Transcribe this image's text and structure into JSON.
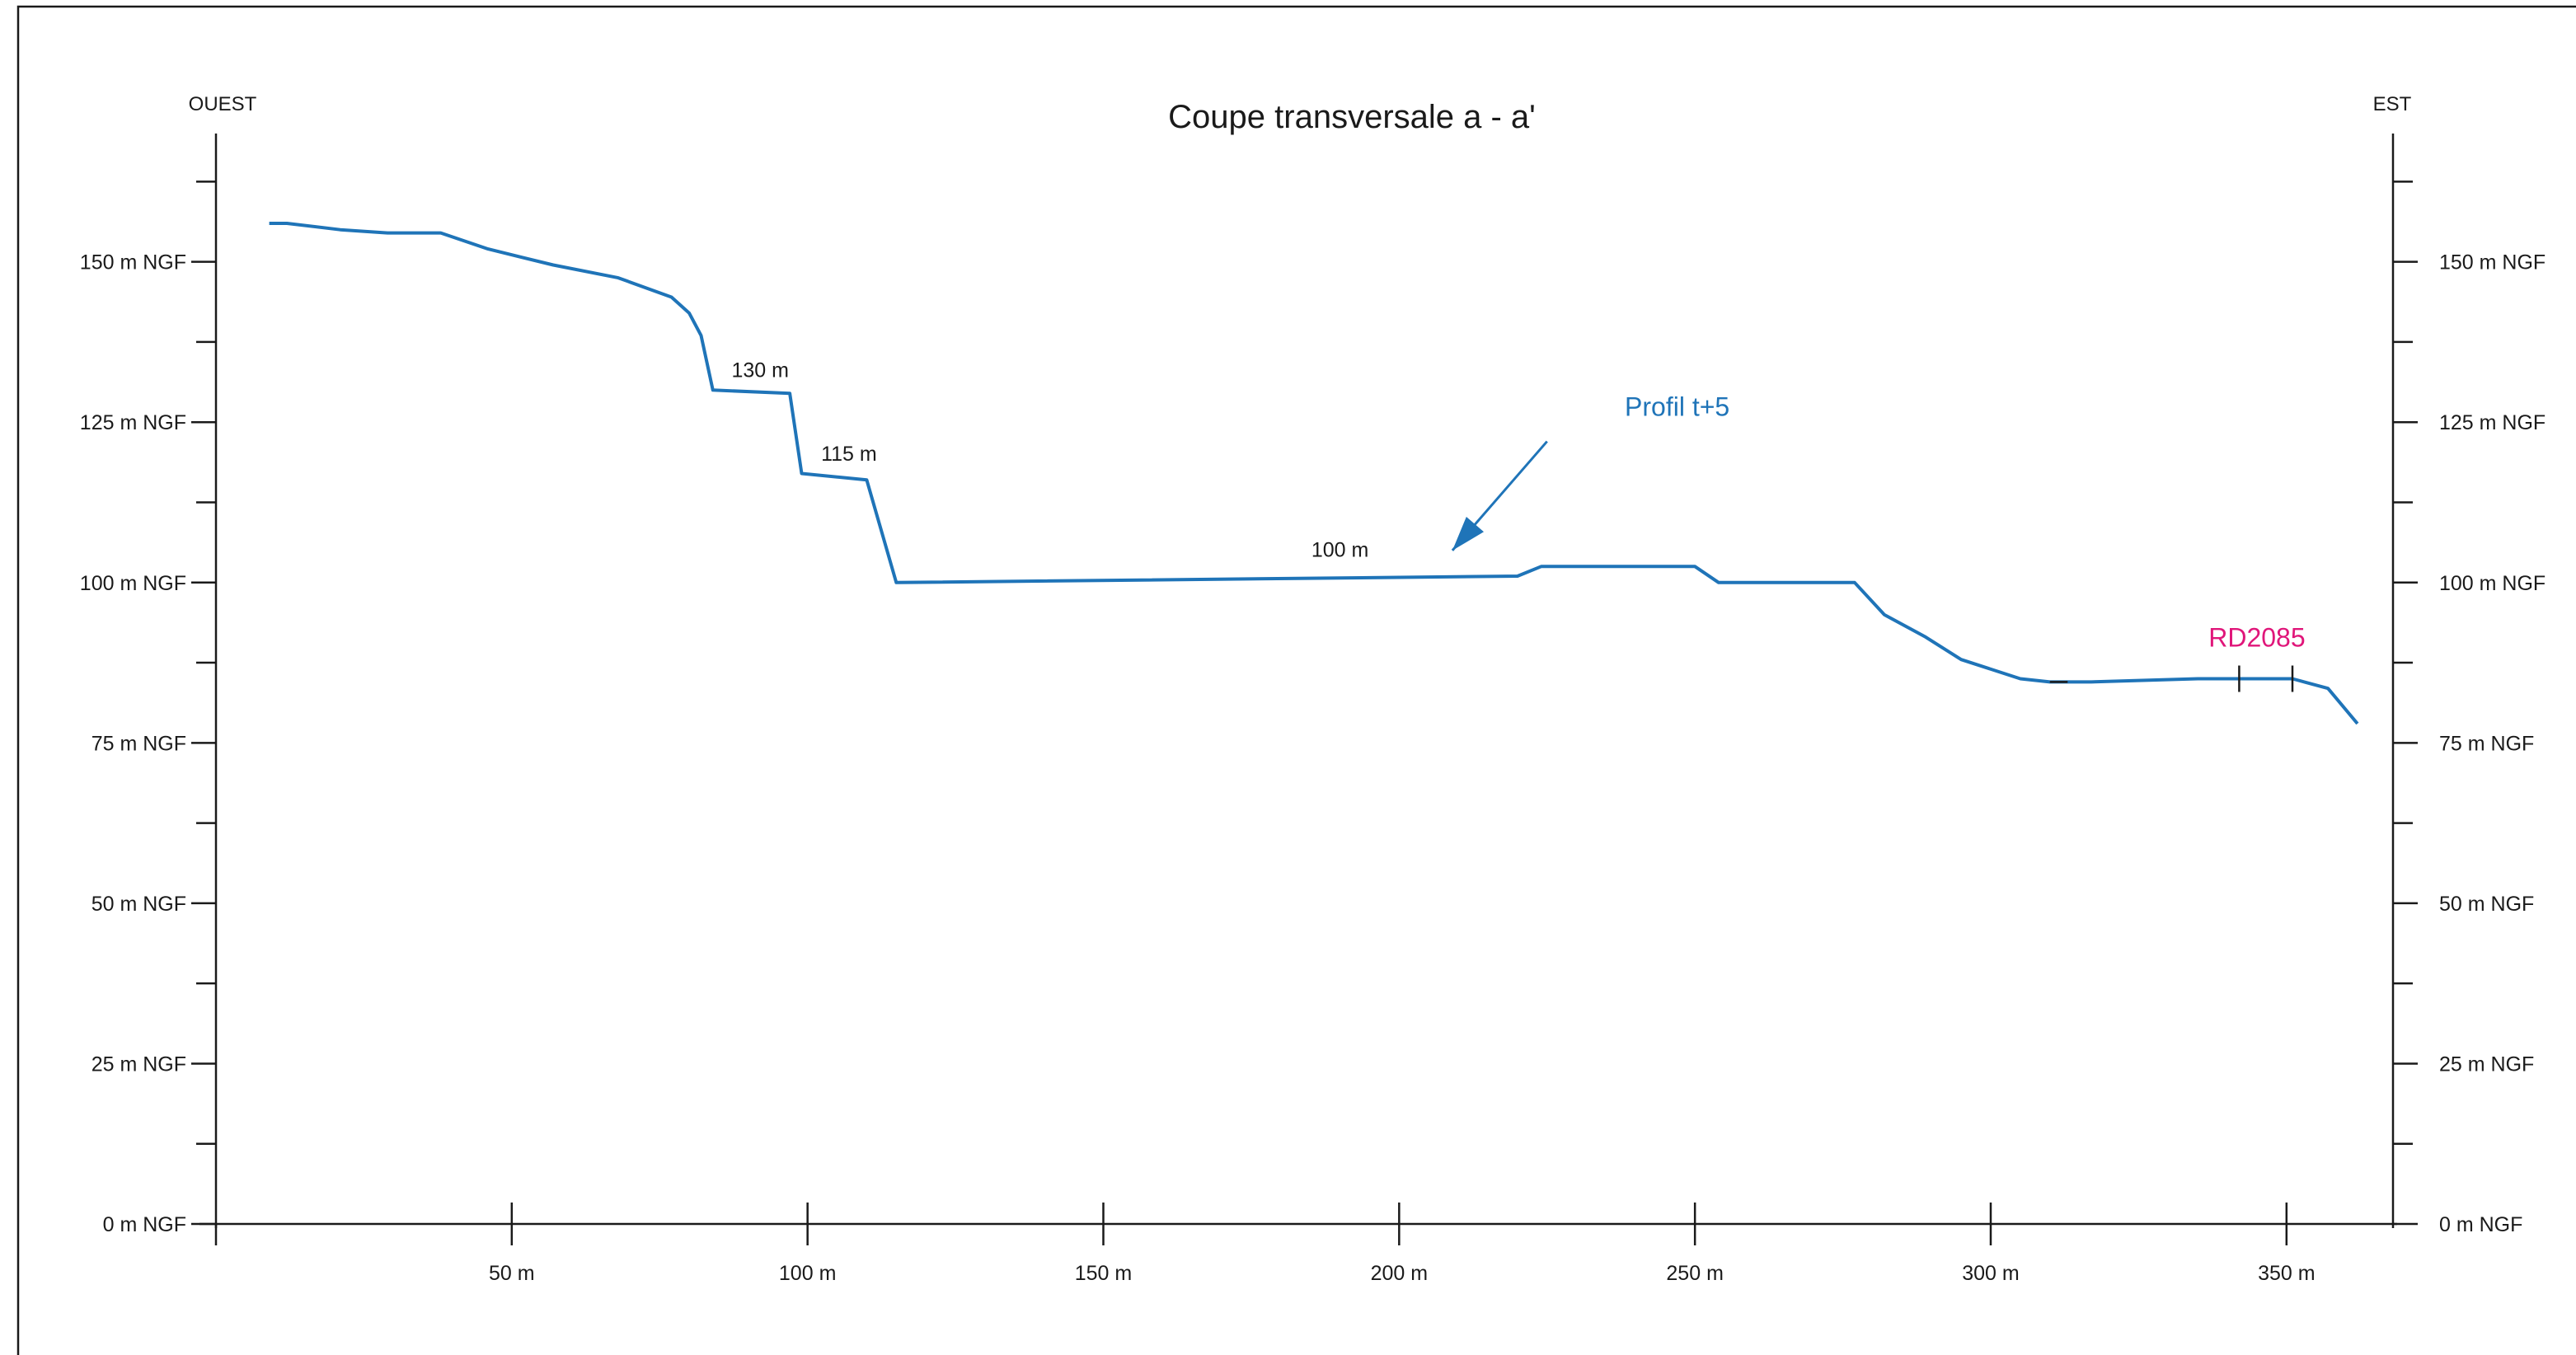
{
  "chart_data": {
    "type": "line",
    "title": "Coupe transversale a - a'",
    "left_side_label": "OUEST",
    "right_side_label": "EST",
    "xlim": [
      0,
      368
    ],
    "ylim": [
      0,
      170
    ],
    "grid": false,
    "x_ticks": [
      {
        "value": 50,
        "label": "50 m"
      },
      {
        "value": 100,
        "label": "100 m"
      },
      {
        "value": 150,
        "label": "150 m"
      },
      {
        "value": 200,
        "label": "200 m"
      },
      {
        "value": 250,
        "label": "250 m"
      },
      {
        "value": 300,
        "label": "300 m"
      },
      {
        "value": 350,
        "label": "350 m"
      }
    ],
    "y_major_ticks": [
      {
        "value": 0,
        "label": "0 m NGF"
      },
      {
        "value": 25,
        "label": "25 m NGF"
      },
      {
        "value": 50,
        "label": "50 m NGF"
      },
      {
        "value": 75,
        "label": "75 m NGF"
      },
      {
        "value": 100,
        "label": "100 m NGF"
      },
      {
        "value": 125,
        "label": "125 m NGF"
      },
      {
        "value": 150,
        "label": "150 m NGF"
      }
    ],
    "y_minor_ticks": [
      12.5,
      37.5,
      62.5,
      87.5,
      112.5,
      137.5,
      162.5
    ],
    "series": [
      {
        "name": "Profil  t+5",
        "color": "#1f74b8",
        "x": [
          9,
          12,
          21,
          29,
          38,
          46,
          57,
          68,
          77,
          80,
          82,
          84,
          97,
          99,
          110,
          115,
          220,
          224,
          250,
          254,
          277,
          282,
          289,
          295,
          305,
          310,
          317,
          335,
          351,
          357,
          362
        ],
        "y": [
          156,
          156,
          155,
          154.5,
          154.5,
          152,
          149.5,
          147.5,
          144.5,
          142,
          138.5,
          130,
          129.5,
          117,
          116,
          100,
          101,
          102.5,
          102.5,
          100,
          100,
          95,
          91.5,
          88,
          85,
          84.5,
          84.5,
          85,
          85,
          83.5,
          78
        ]
      }
    ],
    "annotations": [
      {
        "text": "130 m",
        "x": 92,
        "y": 132,
        "color": "#1a1a1a"
      },
      {
        "text": "115 m",
        "x": 107,
        "y": 119,
        "color": "#1a1a1a"
      },
      {
        "text": "100 m",
        "x": 190,
        "y": 104,
        "color": "#1a1a1a"
      },
      {
        "text": "Profil  t+5",
        "x": 247,
        "y": 126,
        "color": "#1f74b8"
      },
      {
        "text": "RD2085",
        "x": 345,
        "y": 90,
        "color": "#e0167a"
      }
    ],
    "marker": {
      "label": "RD2085",
      "x_values": [
        342,
        351
      ],
      "y": 85,
      "color": "#1a1a1a"
    },
    "arrow": {
      "from": [
        225,
        122
      ],
      "to": [
        209,
        105
      ],
      "color": "#1f74b8"
    }
  }
}
